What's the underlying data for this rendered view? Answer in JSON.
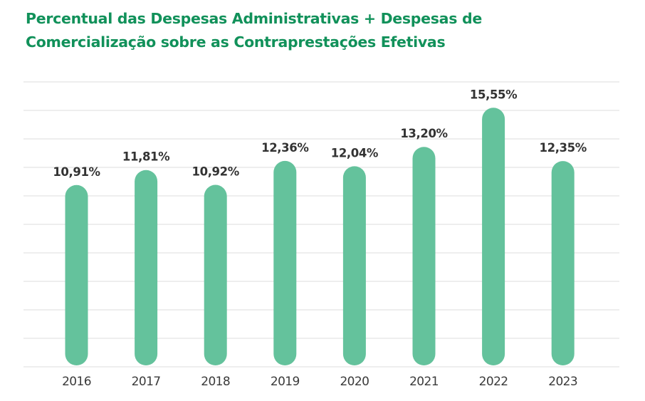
{
  "chart_data": {
    "type": "bar",
    "title": "Percentual das Despesas Administrativas + Despesas de Comercialização sobre as Contraprestações Efetivas",
    "title_lines": [
      "Percentual das Despesas Administrativas + Despesas de",
      "Comercialização sobre as Contraprestações Efetivas"
    ],
    "categories": [
      "2016",
      "2017",
      "2018",
      "2019",
      "2020",
      "2021",
      "2022",
      "2023"
    ],
    "values": [
      10.91,
      11.81,
      10.92,
      12.36,
      12.04,
      13.2,
      15.55,
      12.35
    ],
    "value_labels": [
      "10,91%",
      "11,81%",
      "10,92%",
      "12,36%",
      "12,04%",
      "13,20%",
      "15,55%",
      "12,35%"
    ],
    "xlabel": "",
    "ylabel": "",
    "ylim": [
      0,
      17.1
    ],
    "grid": true,
    "gridline_count": 11,
    "legend": "none",
    "bar_style": "rounded",
    "colors": {
      "bar": "#64c29c",
      "title": "#11915a",
      "grid": "#e3e3e3",
      "value_label": "#333333",
      "tick_label": "#3a3a3a"
    }
  }
}
